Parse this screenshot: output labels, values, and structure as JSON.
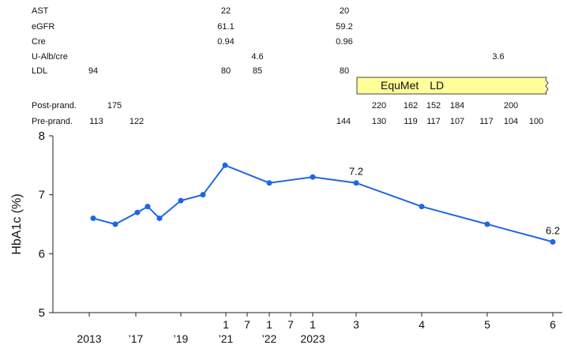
{
  "lab_table": {
    "rows": [
      {
        "label": "AST",
        "values": [
          null,
          null,
          "22",
          null,
          null,
          "20",
          null,
          null,
          null,
          null,
          null,
          null,
          null
        ]
      },
      {
        "label": "eGFR",
        "values": [
          null,
          null,
          "61.1",
          null,
          null,
          "59.2",
          null,
          null,
          null,
          null,
          null,
          null,
          null
        ]
      },
      {
        "label": "Cre",
        "values": [
          null,
          null,
          "0.94",
          null,
          null,
          "0.96",
          null,
          null,
          null,
          null,
          null,
          null,
          null
        ]
      },
      {
        "label": "U-Alb/cre",
        "values": [
          null,
          null,
          null,
          "4.6",
          null,
          null,
          null,
          null,
          null,
          null,
          "3.6",
          null,
          null
        ]
      },
      {
        "label": "LDL",
        "values": [
          "94",
          null,
          "80",
          "85",
          null,
          "80",
          null,
          null,
          null,
          null,
          null,
          null,
          null
        ]
      }
    ]
  },
  "glucose_table": {
    "rows": [
      {
        "label": "Post-prand.",
        "values": [
          null,
          "175",
          null,
          null,
          "220",
          "162",
          "152",
          "184",
          null,
          "200",
          null,
          null
        ]
      },
      {
        "label": "Pre-prand.",
        "values": [
          "113",
          "122",
          "144",
          null,
          "130",
          "119",
          "117",
          "107",
          "117",
          "104",
          "100",
          null
        ]
      }
    ]
  },
  "treatment": {
    "label": "EquMet LD",
    "color": "#ffff99",
    "border_color": "#444444"
  },
  "chart_data": {
    "type": "line",
    "ylabel": "HbA1c (%)",
    "ylim": [
      5,
      8
    ],
    "yticks": [
      "5",
      "6",
      "7",
      "8"
    ],
    "xtick_labels": [
      {
        "top": "",
        "bottom": "2013"
      },
      {
        "top": "",
        "bottom": "’17"
      },
      {
        "top": "",
        "bottom": "’19"
      },
      {
        "top": "1",
        "bottom": "’21"
      },
      {
        "top": "7",
        "bottom": ""
      },
      {
        "top": "1",
        "bottom": "’22"
      },
      {
        "top": "7",
        "bottom": ""
      },
      {
        "top": "1",
        "bottom": "2023"
      },
      {
        "top": "3",
        "bottom": ""
      },
      {
        "top": "4",
        "bottom": ""
      },
      {
        "top": "5",
        "bottom": ""
      },
      {
        "top": "6",
        "bottom": ""
      }
    ],
    "series": [
      {
        "color": "#1f66e5",
        "values": [
          6.6,
          6.5,
          6.7,
          6.8,
          6.6,
          6.9,
          7.0,
          7.5,
          7.2,
          7.3,
          7.2,
          6.8,
          6.5,
          6.2
        ]
      }
    ],
    "data_labels": [
      {
        "point": 10,
        "text": "7.2"
      },
      {
        "point": 13,
        "text": "6.2"
      }
    ]
  }
}
